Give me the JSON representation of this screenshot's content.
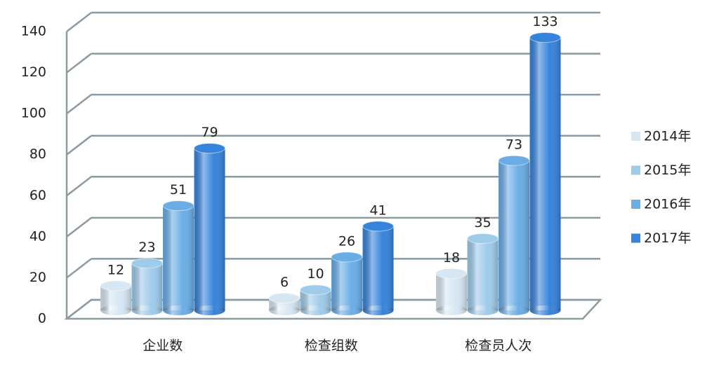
{
  "chart_data": {
    "type": "bar",
    "categories": [
      "企业数",
      "检查组数",
      "检查员人次"
    ],
    "series": [
      {
        "name": "2014年",
        "color": "#d6e6f2",
        "values": [
          12,
          6,
          18
        ]
      },
      {
        "name": "2015年",
        "color": "#9ecbea",
        "values": [
          23,
          10,
          35
        ]
      },
      {
        "name": "2016年",
        "color": "#6aade6",
        "values": [
          51,
          26,
          73
        ]
      },
      {
        "name": "2017年",
        "color": "#3583dc",
        "values": [
          79,
          41,
          133
        ]
      }
    ],
    "ylim": [
      0,
      140
    ],
    "yticks": [
      0,
      20,
      40,
      60,
      80,
      100,
      120,
      140
    ],
    "grid": true,
    "legend": "right"
  }
}
